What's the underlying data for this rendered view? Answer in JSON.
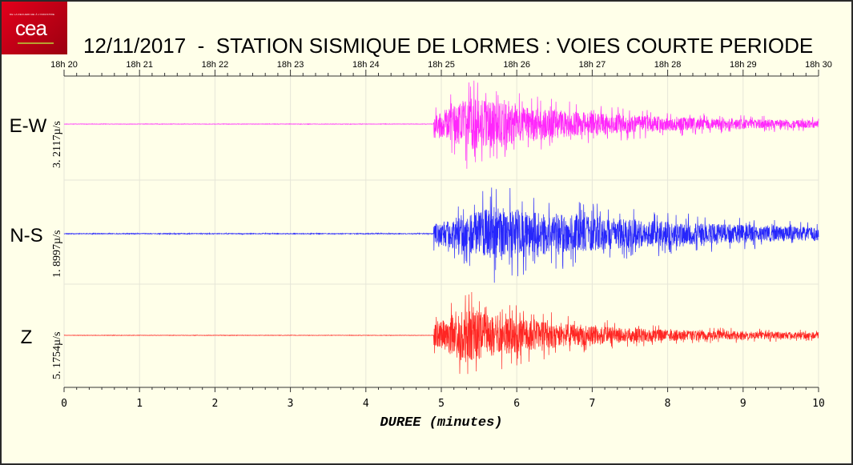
{
  "logo": {
    "text": "cea",
    "tagline": "DE LA RECHERCHE À L'INDUSTRIE"
  },
  "chart_data": {
    "type": "line",
    "title": "12/11/2017  -  STATION SISMIQUE DE LORMES : VOIES COURTE PERIODE",
    "xlabel": "DUREE (minutes)",
    "xlim": [
      0,
      10
    ],
    "x_ticks": [
      "0",
      "1",
      "2",
      "3",
      "4",
      "5",
      "6",
      "7",
      "8",
      "9",
      "10"
    ],
    "top_ticks": [
      "18h 20",
      "18h 21",
      "18h 22",
      "18h 23",
      "18h 24",
      "18h 25",
      "18h 26",
      "18h 27",
      "18h 28",
      "18h 29",
      "18h 30"
    ],
    "grid": true,
    "series": [
      {
        "name": "E-W",
        "scale": "3. 2117µ/s",
        "color": "#ff00ff"
      },
      {
        "name": "N-S",
        "scale": "1. 8997µ/s",
        "color": "#0000ff"
      },
      {
        "name": "Z",
        "scale": "5. 1754µ/s",
        "color": "#ff0000"
      }
    ]
  },
  "colors": {
    "background": "#ffffe9",
    "grid": "#e6e6d8"
  }
}
